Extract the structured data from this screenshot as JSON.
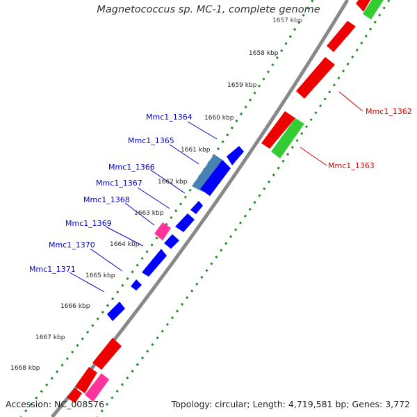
{
  "title": "Magnetococcus sp. MC-1, complete genome",
  "accession": "Accession: NC_008576",
  "summary": "Topology: circular; Length: 4,719,581 bp; Genes: 3,772",
  "ticks": [
    "1657 kbp",
    "1658 kbp",
    "1659 kbp",
    "1660 kbp",
    "1661 kbp",
    "1662 kbp",
    "1663 kbp",
    "1664 kbp",
    "1665 kbp",
    "1666 kbp",
    "1667 kbp",
    "1668 kbp"
  ],
  "labels_left": [
    "Mmc1_1364",
    "Mmc1_1365",
    "Mmc1_1366",
    "Mmc1_1367",
    "Mmc1_1368",
    "Mmc1_1369",
    "Mmc1_1370",
    "Mmc1_1371"
  ],
  "labels_right": [
    "Mmc1_1362",
    "Mmc1_1363"
  ],
  "colors": {
    "backbone": "#888888",
    "cds_forward": "#ff0000",
    "cds_reverse": "#0000ff",
    "highlight_forward": "#44cc44",
    "highlight_reverse": "#4682b4",
    "rna": "#ff3399",
    "gc_track": "#228b22",
    "label_left": "#0000cc",
    "label_right": "#cc0000"
  }
}
